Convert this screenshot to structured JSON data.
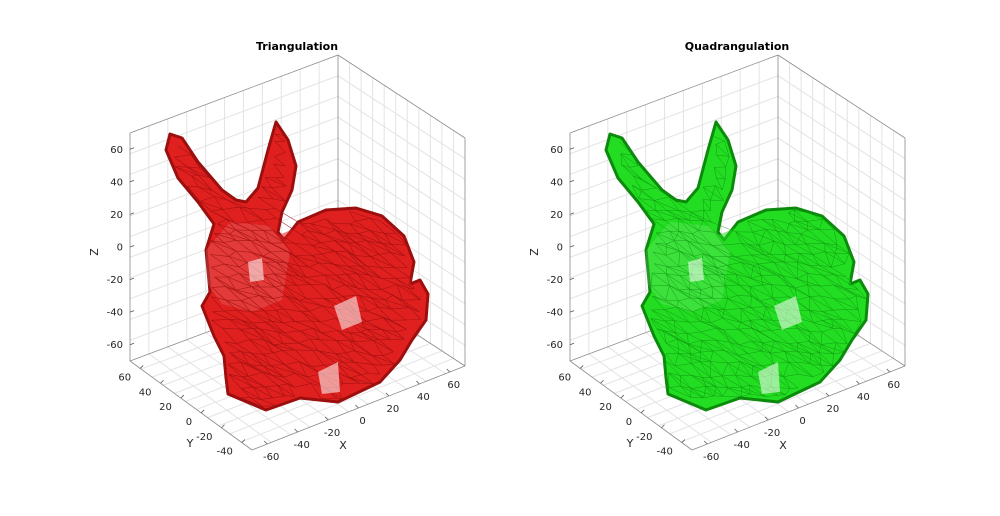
{
  "chart_data": [
    {
      "type": "mesh3d",
      "title": "Triangulation",
      "mesh_color": "#e0201f",
      "edge_color": "#9b0f0f",
      "xlabel": "X",
      "ylabel": "Y",
      "zlabel": "Z",
      "xticks": [
        "-60",
        "-40",
        "-20",
        "0",
        "20",
        "40",
        "60"
      ],
      "yticks": [
        "60",
        "40",
        "20",
        "0",
        "-20",
        "-40"
      ],
      "zticks": [
        "60",
        "40",
        "20",
        "0",
        "-20",
        "-40",
        "-60"
      ],
      "xlim": [
        -70,
        70
      ],
      "ylim": [
        -50,
        70
      ],
      "zlim": [
        -70,
        70
      ],
      "grid": true
    },
    {
      "type": "mesh3d",
      "title": "Quadrangulation",
      "mesh_color": "#22dd22",
      "edge_color": "#0c8a0c",
      "xlabel": "X",
      "ylabel": "Y",
      "zlabel": "Z",
      "xticks": [
        "-60",
        "-40",
        "-20",
        "0",
        "20",
        "40",
        "60"
      ],
      "yticks": [
        "60",
        "40",
        "20",
        "0",
        "-20",
        "-40"
      ],
      "zticks": [
        "60",
        "40",
        "20",
        "0",
        "-20",
        "-40",
        "-60"
      ],
      "xlim": [
        -70,
        70
      ],
      "ylim": [
        -50,
        70
      ],
      "zlim": [
        -70,
        70
      ],
      "grid": true
    }
  ]
}
